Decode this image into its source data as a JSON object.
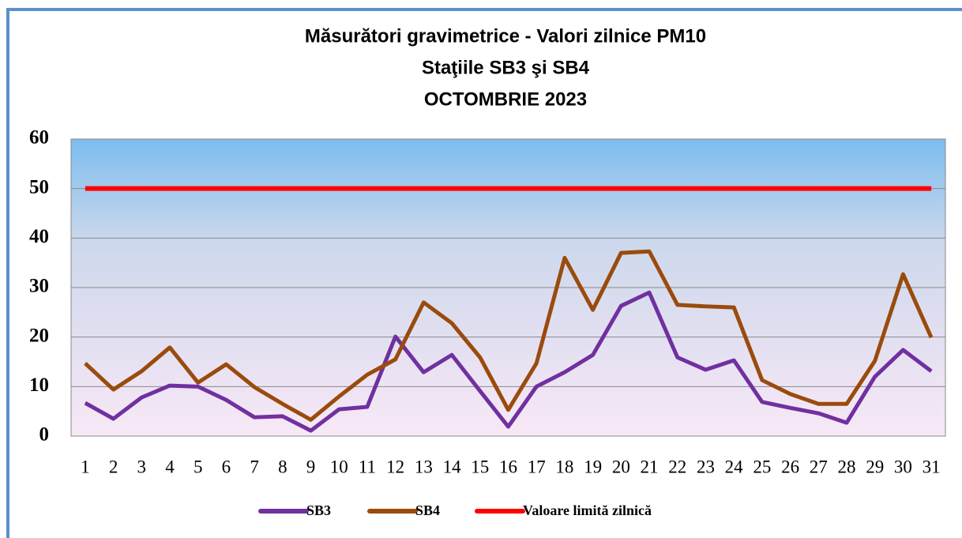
{
  "chart_data": {
    "type": "line",
    "title": [
      "Măsurători gravimetrice - Valori zilnice PM10",
      "Staţiile  SB3 şi SB4",
      "OCTOMBRIE 2023"
    ],
    "categories": [
      "1",
      "2",
      "3",
      "4",
      "5",
      "6",
      "7",
      "8",
      "9",
      "10",
      "11",
      "12",
      "13",
      "14",
      "15",
      "16",
      "17",
      "18",
      "19",
      "20",
      "21",
      "22",
      "23",
      "24",
      "25",
      "26",
      "27",
      "28",
      "29",
      "30",
      "31"
    ],
    "series": [
      {
        "name": "SB3",
        "color": "#7030a0",
        "values": [
          6.7,
          3.5,
          7.8,
          10.2,
          10,
          7.3,
          3.8,
          4,
          1.1,
          5.4,
          5.9,
          20.1,
          12.9,
          16.4,
          9.1,
          1.9,
          10,
          12.9,
          16.4,
          26.3,
          29,
          15.9,
          13.4,
          15.3,
          6.9,
          5.7,
          4.6,
          2.7,
          12,
          17.4,
          13.1
        ]
      },
      {
        "name": "SB4",
        "color": "#9a4b0c",
        "values": [
          14.7,
          9.4,
          13.1,
          17.9,
          10.8,
          14.5,
          9.9,
          6.5,
          3.3,
          8,
          12.4,
          15.5,
          27,
          22.8,
          15.9,
          5.3,
          14.7,
          36,
          25.5,
          37,
          37.3,
          26.5,
          26.2,
          26,
          11.3,
          8.5,
          6.5,
          6.5,
          15.2,
          32.7,
          19.9
        ]
      },
      {
        "name": "Valoare limită zilnică",
        "color": "#ff0000",
        "values": [
          50,
          50,
          50,
          50,
          50,
          50,
          50,
          50,
          50,
          50,
          50,
          50,
          50,
          50,
          50,
          50,
          50,
          50,
          50,
          50,
          50,
          50,
          50,
          50,
          50,
          50,
          50,
          50,
          50,
          50,
          50
        ]
      }
    ],
    "ylim": [
      0,
      60
    ],
    "yticks": [
      0,
      10,
      20,
      30,
      40,
      50,
      60
    ],
    "grid": true,
    "legend": "bottom"
  }
}
